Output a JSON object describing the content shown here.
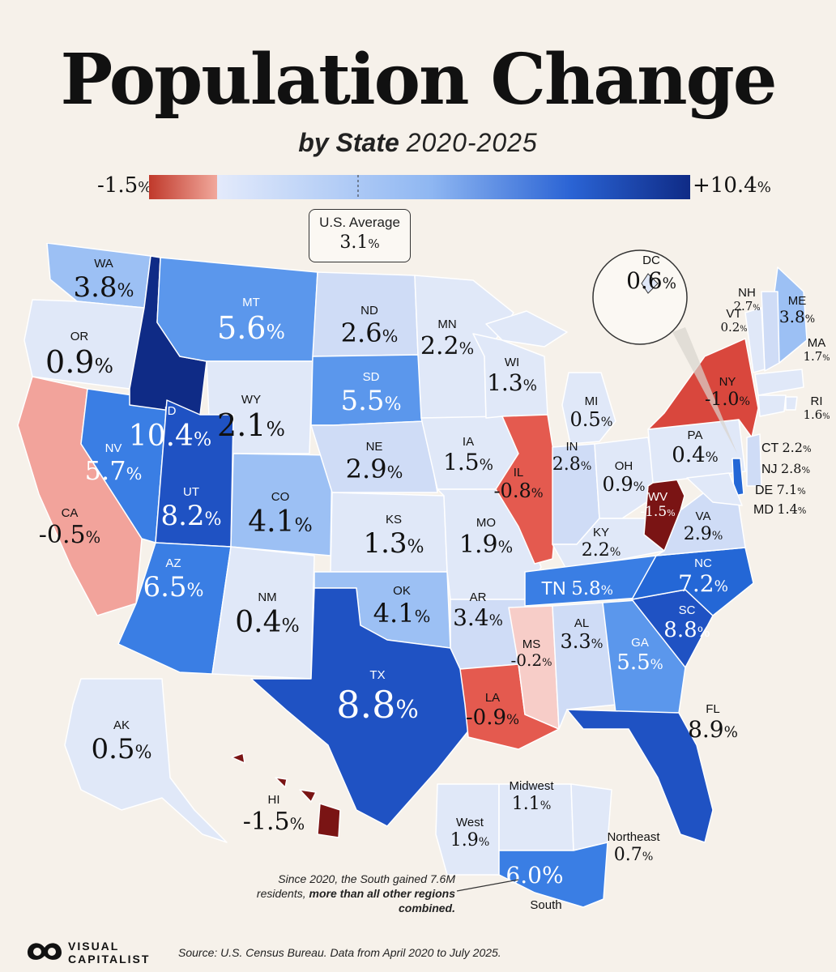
{
  "title": "Population Change",
  "subtitle_bold": "by State",
  "subtitle_range": "2020-2025",
  "legend": {
    "min": "-1.5",
    "max": "+10.4",
    "unit": "%",
    "avg_label": "U.S. Average",
    "avg_value": "3.1",
    "colors": [
      "#c0392b",
      "#e8b3a8",
      "#dfe7f7",
      "#6fa2ee",
      "#2a63d4",
      "#0f2b86"
    ]
  },
  "states": [
    {
      "id": "WA",
      "v": "3.8"
    },
    {
      "id": "OR",
      "v": "0.9"
    },
    {
      "id": "CA",
      "v": "-0.5"
    },
    {
      "id": "NV",
      "v": "5.7"
    },
    {
      "id": "ID",
      "v": "10.4"
    },
    {
      "id": "MT",
      "v": "5.6"
    },
    {
      "id": "WY",
      "v": "2.1"
    },
    {
      "id": "UT",
      "v": "8.2"
    },
    {
      "id": "CO",
      "v": "4.1"
    },
    {
      "id": "AZ",
      "v": "6.5"
    },
    {
      "id": "NM",
      "v": "0.4"
    },
    {
      "id": "ND",
      "v": "2.6"
    },
    {
      "id": "SD",
      "v": "5.5"
    },
    {
      "id": "NE",
      "v": "2.9"
    },
    {
      "id": "KS",
      "v": "1.3"
    },
    {
      "id": "OK",
      "v": "4.1"
    },
    {
      "id": "TX",
      "v": "8.8"
    },
    {
      "id": "MN",
      "v": "2.2"
    },
    {
      "id": "IA",
      "v": "1.5"
    },
    {
      "id": "MO",
      "v": "1.9"
    },
    {
      "id": "AR",
      "v": "3.4"
    },
    {
      "id": "LA",
      "v": "-0.9"
    },
    {
      "id": "WI",
      "v": "1.3"
    },
    {
      "id": "IL",
      "v": "-0.8"
    },
    {
      "id": "MI",
      "v": "0.5"
    },
    {
      "id": "IN",
      "v": "2.8"
    },
    {
      "id": "OH",
      "v": "0.9"
    },
    {
      "id": "KY",
      "v": "2.2"
    },
    {
      "id": "TN",
      "v": "5.8"
    },
    {
      "id": "MS",
      "v": "-0.2"
    },
    {
      "id": "AL",
      "v": "3.3"
    },
    {
      "id": "GA",
      "v": "5.5"
    },
    {
      "id": "FL",
      "v": "8.9"
    },
    {
      "id": "SC",
      "v": "8.8"
    },
    {
      "id": "NC",
      "v": "7.2"
    },
    {
      "id": "VA",
      "v": "2.9"
    },
    {
      "id": "WV",
      "v": "-1.5"
    },
    {
      "id": "PA",
      "v": "0.4"
    },
    {
      "id": "NY",
      "v": "-1.0"
    },
    {
      "id": "ME",
      "v": "3.8"
    },
    {
      "id": "NH",
      "v": "2.7"
    },
    {
      "id": "VT",
      "v": "0.2"
    },
    {
      "id": "MA",
      "v": "1.7"
    },
    {
      "id": "RI",
      "v": "1.6"
    },
    {
      "id": "CT",
      "v": "2.2"
    },
    {
      "id": "NJ",
      "v": "2.8"
    },
    {
      "id": "DE",
      "v": "7.1"
    },
    {
      "id": "MD",
      "v": "1.4"
    },
    {
      "id": "DC",
      "v": "0.6"
    },
    {
      "id": "AK",
      "v": "0.5"
    },
    {
      "id": "HI",
      "v": "-1.5"
    }
  ],
  "regions": [
    {
      "id": "West",
      "v": "1.9"
    },
    {
      "id": "Midwest",
      "v": "1.1"
    },
    {
      "id": "Northeast",
      "v": "0.7"
    },
    {
      "id": "South",
      "v": "6.0"
    }
  ],
  "note": {
    "text": "Since 2020, the South gained 7.6M residents,",
    "bold": "more than all other regions combined."
  },
  "source": "Source: U.S. Census Bureau. Data from April 2020 to July 2025.",
  "brand": {
    "line1": "VISUAL",
    "line2": "CAPITALIST"
  }
}
